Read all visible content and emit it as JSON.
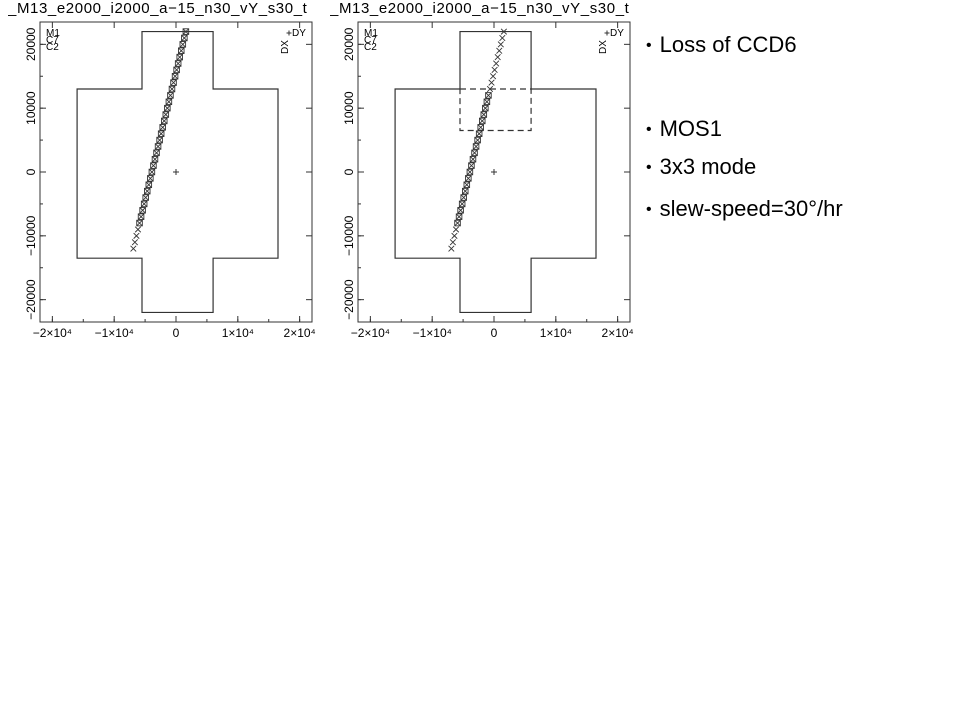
{
  "bullets": {
    "loss": "Loss of CCD6",
    "mos1": "MOS1",
    "mode": "3x3 mode",
    "slew": "slew-speed=30°/hr",
    "dot": "•"
  },
  "chart_data": [
    {
      "type": "scatter",
      "title": "_M13_e2000_i2000_a−15_n30_vY_s30_t",
      "xlabel": "",
      "ylabel": "",
      "xlim": [
        -22000,
        22000
      ],
      "ylim": [
        -23500,
        23500
      ],
      "x_ticks": [
        -20000,
        -10000,
        0,
        10000,
        20000
      ],
      "x_tick_labels": [
        "−2×10⁴",
        "−1×10⁴",
        "0",
        "1×10⁴",
        "2×10⁴"
      ],
      "y_ticks": [
        -20000,
        -10000,
        0,
        10000,
        20000
      ],
      "y_tick_labels": [
        "−20000",
        "−10000",
        "0",
        "10000",
        "20000"
      ],
      "corner_labels": [
        "M1",
        "C7",
        "C2",
        "DY",
        "DX"
      ],
      "outline": [
        [
          -5500,
          22000
        ],
        [
          6000,
          22000
        ],
        [
          6000,
          13000
        ],
        [
          16500,
          13000
        ],
        [
          16500,
          -13500
        ],
        [
          6000,
          -13500
        ],
        [
          6000,
          -22000
        ],
        [
          -5500,
          -22000
        ],
        [
          -5500,
          -13500
        ],
        [
          -16000,
          -13500
        ],
        [
          -16000,
          13000
        ],
        [
          -5500,
          13000
        ]
      ],
      "origin_marker": [
        0,
        0
      ],
      "series": [
        {
          "marker": "boxed-x",
          "x": [
            1600,
            1350,
            1100,
            850,
            600,
            350,
            100,
            -150,
            -400,
            -650,
            -900,
            -1150,
            -1400,
            -1650,
            -1900,
            -2150,
            -2400,
            -2650,
            -2900,
            -3150,
            -3400,
            -3650,
            -3900,
            -4150,
            -4400,
            -4650,
            -4900,
            -5150,
            -5400,
            -5650,
            -5900
          ],
          "y": [
            22000,
            21000,
            20000,
            19000,
            18000,
            17000,
            16000,
            15000,
            14000,
            13000,
            12000,
            11000,
            10000,
            9000,
            8000,
            7000,
            6000,
            5000,
            4000,
            3000,
            2000,
            1000,
            0,
            -1000,
            -2000,
            -3000,
            -4000,
            -5000,
            -6000,
            -7000,
            -8000
          ]
        },
        {
          "marker": "x",
          "x": [
            -6150,
            -6400,
            -6650,
            -6900
          ],
          "y": [
            -9000,
            -10000,
            -11000,
            -12000
          ]
        }
      ]
    },
    {
      "type": "scatter",
      "title": "_M13_e2000_i2000_a−15_n30_vY_s30_t",
      "xlabel": "",
      "ylabel": "",
      "xlim": [
        -22000,
        22000
      ],
      "ylim": [
        -23500,
        23500
      ],
      "x_ticks": [
        -20000,
        -10000,
        0,
        10000,
        20000
      ],
      "x_tick_labels": [
        "−2×10⁴",
        "−1×10⁴",
        "0",
        "1×10⁴",
        "2×10⁴"
      ],
      "y_ticks": [
        -20000,
        -10000,
        0,
        10000,
        20000
      ],
      "y_tick_labels": [
        "−20000",
        "−10000",
        "0",
        "10000",
        "20000"
      ],
      "corner_labels": [
        "M1",
        "C7",
        "C2",
        "DY",
        "DX"
      ],
      "outline": [
        [
          -5500,
          22000
        ],
        [
          6000,
          22000
        ],
        [
          6000,
          13000
        ],
        [
          16500,
          13000
        ],
        [
          16500,
          -13500
        ],
        [
          6000,
          -13500
        ],
        [
          6000,
          -22000
        ],
        [
          -5500,
          -22000
        ],
        [
          -5500,
          -13500
        ],
        [
          -16000,
          -13500
        ],
        [
          -16000,
          13000
        ],
        [
          -5500,
          13000
        ]
      ],
      "dead_ccd": [
        [
          -5500,
          13000
        ],
        [
          6000,
          13000
        ],
        [
          6000,
          6500
        ],
        [
          -5500,
          6500
        ]
      ],
      "origin_marker": [
        0,
        0
      ],
      "series": [
        {
          "marker": "x",
          "x": [
            1600,
            1350,
            1100,
            850,
            600,
            350,
            100,
            -150,
            -400,
            -650
          ],
          "y": [
            22000,
            21000,
            20000,
            19000,
            18000,
            17000,
            16000,
            15000,
            14000,
            13000
          ]
        },
        {
          "marker": "boxed-x",
          "x": [
            -900,
            -1150,
            -1400,
            -1650,
            -1900,
            -2150,
            -2400,
            -2650,
            -2900,
            -3150,
            -3400,
            -3650,
            -3900,
            -4150,
            -4400,
            -4650,
            -4900,
            -5150,
            -5400,
            -5650,
            -5900
          ],
          "y": [
            12000,
            11000,
            10000,
            9000,
            8000,
            7000,
            6000,
            5000,
            4000,
            3000,
            2000,
            1000,
            0,
            -1000,
            -2000,
            -3000,
            -4000,
            -5000,
            -6000,
            -7000,
            -8000
          ]
        },
        {
          "marker": "x",
          "x": [
            -6150,
            -6400,
            -6650,
            -6900
          ],
          "y": [
            -9000,
            -10000,
            -11000,
            -12000
          ]
        }
      ]
    }
  ]
}
